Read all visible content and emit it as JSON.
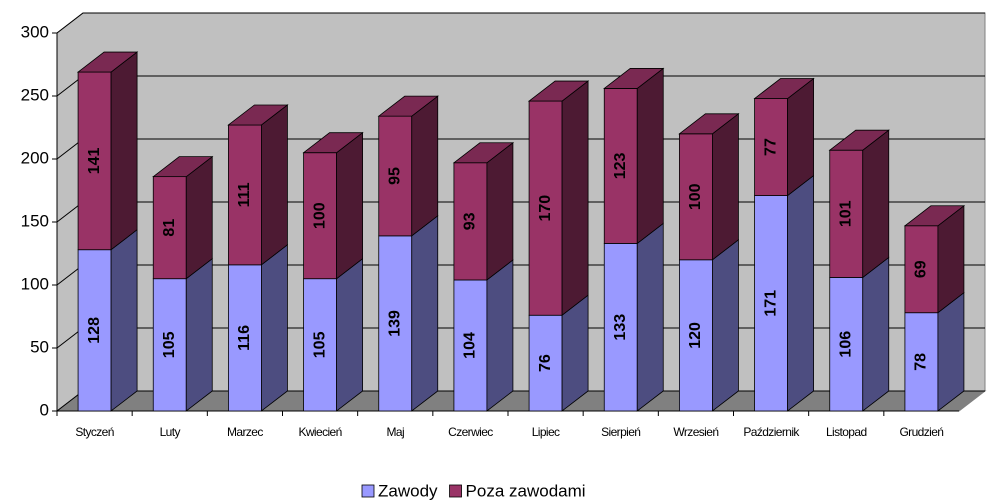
{
  "chart_data": {
    "type": "bar",
    "categories": [
      "Styczeń",
      "Luty",
      "Marzec",
      "Kwiecień",
      "Maj",
      "Czerwiec",
      "Lipiec",
      "Sierpień",
      "Wrzesień",
      "Październik",
      "Listopad",
      "Grudzień"
    ],
    "series": [
      {
        "name": "Zawody",
        "color": "#9999ff",
        "values": [
          128,
          105,
          116,
          105,
          139,
          104,
          76,
          133,
          120,
          171,
          106,
          78
        ]
      },
      {
        "name": "Poza zawodami",
        "color": "#993366",
        "values": [
          141,
          81,
          111,
          100,
          95,
          93,
          170,
          123,
          100,
          77,
          101,
          69
        ]
      }
    ],
    "stacked": true,
    "ylim": [
      0,
      300
    ],
    "yticks": [
      0,
      50,
      100,
      150,
      200,
      250,
      300
    ],
    "grid": true,
    "legend": "bottom"
  }
}
